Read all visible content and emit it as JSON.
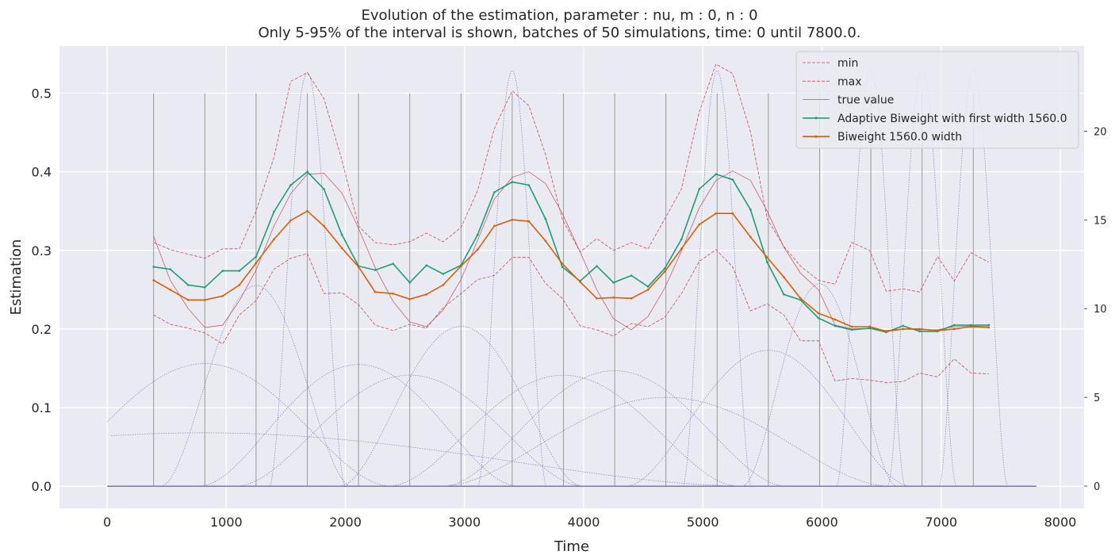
{
  "chart_data": {
    "type": "line",
    "title": "Evolution of the estimation, parameter : nu, m : 0, n : 0",
    "subtitle": "Only 5-95% of the interval is shown, batches of 50 simulations, time: 0 until 7800.0.",
    "xlabel": "Time",
    "ylabel": "Estimation",
    "xlim": [
      -400,
      8200
    ],
    "ylim": [
      -0.028,
      0.56
    ],
    "xticks": [
      0,
      1000,
      2000,
      3000,
      4000,
      5000,
      6000,
      7000,
      8000
    ],
    "xtick_labels": [
      "0",
      "1000",
      "2000",
      "3000",
      "4000",
      "5000",
      "6000",
      "7000",
      "8000"
    ],
    "yticks": [
      0.0,
      0.1,
      0.2,
      0.3,
      0.4,
      0.5
    ],
    "ytick_labels": [
      "0.0",
      "0.1",
      "0.2",
      "0.3",
      "0.4",
      "0.5"
    ],
    "y2lim": [
      -1.25,
      24.8
    ],
    "y2ticks": [
      0,
      5,
      10,
      15,
      20
    ],
    "y2tick_labels": [
      "0",
      "5",
      "10",
      "15",
      "20"
    ],
    "grid": true,
    "legend_position": "top-right",
    "x": [
      390,
      530,
      680,
      820,
      970,
      1110,
      1250,
      1400,
      1540,
      1680,
      1820,
      1970,
      2110,
      2250,
      2400,
      2540,
      2680,
      2820,
      2970,
      3110,
      3250,
      3400,
      3540,
      3680,
      3820,
      3970,
      4110,
      4250,
      4400,
      4540,
      4680,
      4820,
      4970,
      5110,
      5250,
      5400,
      5540,
      5680,
      5820,
      5970,
      6110,
      6250,
      6400,
      6540,
      6680,
      6820,
      6970,
      7110,
      7250,
      7400
    ],
    "series": [
      {
        "name": "min",
        "color": "#c44e52",
        "style": "dashed",
        "values": [
          0.218,
          0.206,
          0.201,
          0.195,
          0.181,
          0.218,
          0.236,
          0.276,
          0.29,
          0.296,
          0.245,
          0.246,
          0.231,
          0.205,
          0.198,
          0.206,
          0.201,
          0.227,
          0.245,
          0.263,
          0.268,
          0.291,
          0.291,
          0.258,
          0.239,
          0.204,
          0.199,
          0.191,
          0.207,
          0.203,
          0.215,
          0.245,
          0.286,
          0.301,
          0.279,
          0.223,
          0.232,
          0.218,
          0.185,
          0.185,
          0.134,
          0.137,
          0.135,
          0.132,
          0.133,
          0.144,
          0.139,
          0.162,
          0.144,
          0.143
        ]
      },
      {
        "name": "max",
        "color": "#c44e52",
        "style": "dashed",
        "values": [
          0.31,
          0.301,
          0.295,
          0.29,
          0.302,
          0.302,
          0.35,
          0.418,
          0.515,
          0.526,
          0.493,
          0.415,
          0.331,
          0.31,
          0.307,
          0.311,
          0.322,
          0.311,
          0.329,
          0.376,
          0.455,
          0.503,
          0.484,
          0.422,
          0.34,
          0.298,
          0.315,
          0.3,
          0.31,
          0.302,
          0.34,
          0.378,
          0.476,
          0.537,
          0.525,
          0.451,
          0.34,
          0.305,
          0.28,
          0.262,
          0.257,
          0.31,
          0.3,
          0.248,
          0.251,
          0.247,
          0.292,
          0.261,
          0.297,
          0.285
        ]
      },
      {
        "name": "true value",
        "color": "#c44e52",
        "style": "solid-thin",
        "values": [
          0.318,
          0.262,
          0.226,
          0.202,
          0.205,
          0.236,
          0.275,
          0.331,
          0.372,
          0.397,
          0.398,
          0.373,
          0.328,
          0.278,
          0.235,
          0.209,
          0.203,
          0.224,
          0.263,
          0.313,
          0.365,
          0.393,
          0.4,
          0.385,
          0.347,
          0.298,
          0.25,
          0.213,
          0.199,
          0.216,
          0.252,
          0.299,
          0.354,
          0.389,
          0.401,
          0.389,
          0.35,
          0.304,
          0.271,
          0.25,
          0.205,
          0.2,
          0.201,
          0.198,
          0.2,
          0.199,
          0.199,
          0.203,
          0.204,
          0.203
        ]
      },
      {
        "name": "Adaptive Biweight with first width 1560.0",
        "color": "#1b9e77",
        "style": "solid",
        "values": [
          0.279,
          0.276,
          0.256,
          0.253,
          0.274,
          0.274,
          0.292,
          0.349,
          0.383,
          0.4,
          0.378,
          0.32,
          0.28,
          0.275,
          0.283,
          0.259,
          0.281,
          0.27,
          0.281,
          0.32,
          0.374,
          0.387,
          0.383,
          0.34,
          0.279,
          0.261,
          0.28,
          0.259,
          0.268,
          0.254,
          0.277,
          0.314,
          0.378,
          0.397,
          0.39,
          0.352,
          0.285,
          0.244,
          0.237,
          0.214,
          0.204,
          0.199,
          0.201,
          0.196,
          0.204,
          0.197,
          0.197,
          0.205,
          0.205,
          0.205
        ]
      },
      {
        "name": "Biweight 1560.0 width",
        "color": "#d95f02",
        "style": "solid",
        "values": [
          0.262,
          0.25,
          0.237,
          0.237,
          0.242,
          0.256,
          0.284,
          0.314,
          0.338,
          0.35,
          0.331,
          0.303,
          0.279,
          0.247,
          0.245,
          0.238,
          0.244,
          0.256,
          0.28,
          0.301,
          0.331,
          0.339,
          0.337,
          0.312,
          0.283,
          0.26,
          0.239,
          0.24,
          0.239,
          0.25,
          0.273,
          0.302,
          0.333,
          0.347,
          0.347,
          0.317,
          0.291,
          0.266,
          0.239,
          0.22,
          0.212,
          0.203,
          0.203,
          0.197,
          0.2,
          0.2,
          0.198,
          0.2,
          0.203,
          0.202
        ]
      }
    ],
    "vertical_markers": [
      390,
      820,
      1250,
      1680,
      2110,
      2540,
      2970,
      3400,
      3830,
      4260,
      4690,
      5120,
      5550,
      5980,
      6410,
      6840,
      7270
    ],
    "kernel_curves": [
      {
        "center": 800,
        "halfwidth": 4600,
        "peak": 3.0
      },
      {
        "center": 820,
        "halfwidth": 1560,
        "peak": 6.9
      },
      {
        "center": 1250,
        "halfwidth": 800,
        "peak": 11.3
      },
      {
        "center": 1680,
        "halfwidth": 320,
        "peak": 23.3
      },
      {
        "center": 2110,
        "halfwidth": 1340,
        "peak": 6.85
      },
      {
        "center": 2540,
        "halfwidth": 1460,
        "peak": 6.25
      },
      {
        "center": 2970,
        "halfwidth": 1020,
        "peak": 9.0
      },
      {
        "center": 3400,
        "halfwidth": 290,
        "peak": 23.4
      },
      {
        "center": 3830,
        "halfwidth": 1470,
        "peak": 6.25
      },
      {
        "center": 4260,
        "halfwidth": 1440,
        "peak": 6.5
      },
      {
        "center": 4690,
        "halfwidth": 1880,
        "peak": 5.0
      },
      {
        "center": 5120,
        "halfwidth": 290,
        "peak": 23.4
      },
      {
        "center": 5550,
        "halfwidth": 1200,
        "peak": 7.65
      },
      {
        "center": 5980,
        "halfwidth": 650,
        "peak": 11.4
      },
      {
        "center": 6410,
        "halfwidth": 290,
        "peak": 23.4
      },
      {
        "center": 6840,
        "halfwidth": 290,
        "peak": 23.4
      },
      {
        "center": 7270,
        "halfwidth": 290,
        "peak": 23.4
      }
    ],
    "baseline": {
      "x0": 0,
      "x1": 7800,
      "value": 0
    }
  }
}
